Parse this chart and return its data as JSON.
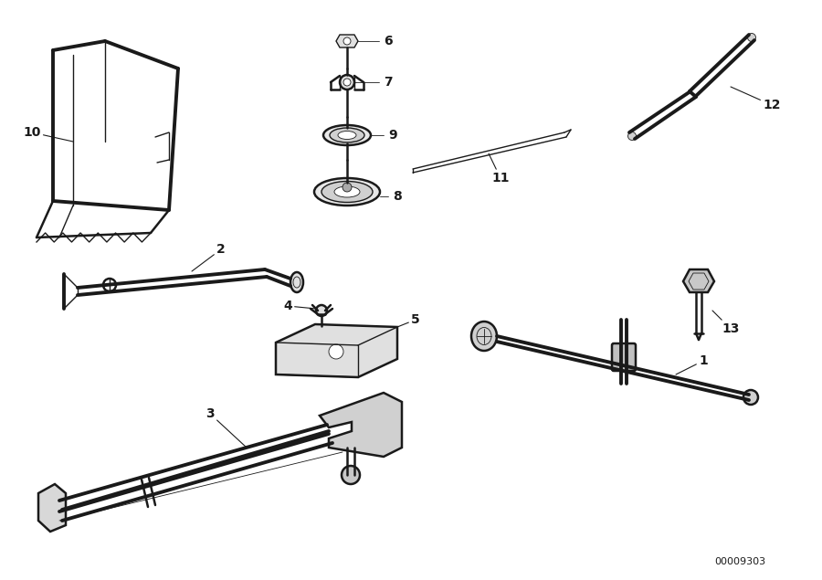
{
  "bg_color": "#ffffff",
  "line_color": "#1a1a1a",
  "label_color": "#1a1a1a",
  "part_number": "00009303",
  "fig_w": 9.0,
  "fig_h": 6.35,
  "dpi": 100,
  "lw_thick": 2.8,
  "lw_mid": 1.8,
  "lw_thin": 1.0,
  "lw_hair": 0.6,
  "label_fs": 10,
  "partnum_fs": 8
}
